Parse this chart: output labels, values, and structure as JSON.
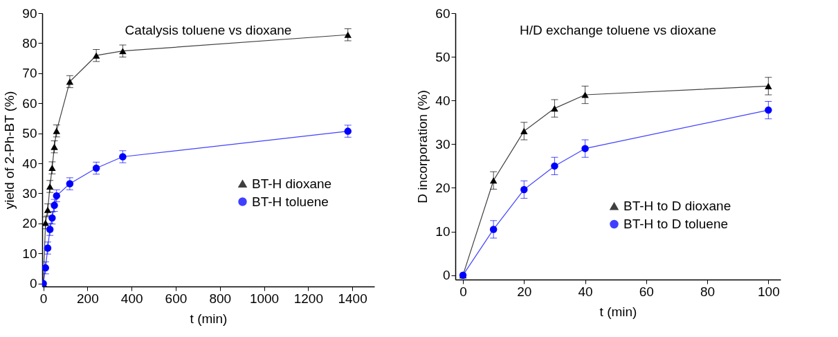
{
  "chart_data": [
    {
      "type": "line",
      "title": "Catalysis toluene vs dioxane",
      "xlabel": "t (min)",
      "ylabel": "yield of 2-Ph-BT (%)",
      "x": [
        0,
        10,
        20,
        30,
        40,
        50,
        60,
        120,
        240,
        360,
        1380
      ],
      "series": [
        {
          "name": "BT-H dioxane",
          "color": "#000000",
          "marker": "triangle",
          "values": [
            0,
            20.2,
            24.5,
            32.3,
            38.5,
            45.5,
            50.8,
            67.2,
            75.9,
            77.4,
            82.8
          ],
          "errors": [
            null,
            2,
            2,
            2,
            2,
            2,
            2,
            2,
            2,
            2,
            2
          ]
        },
        {
          "name": "BT-H toluene",
          "color": "#0000ff",
          "marker": "circle",
          "values": [
            0,
            5.2,
            11.8,
            18,
            21.8,
            26,
            29.2,
            33.2,
            38.4,
            42.2,
            50.7
          ],
          "errors": [
            null,
            2,
            2,
            2,
            2,
            2,
            2,
            2,
            2,
            2,
            2
          ]
        }
      ],
      "xlim": [
        -5,
        1500
      ],
      "ylim": [
        -1,
        90
      ],
      "xticks": [
        0,
        200,
        400,
        600,
        800,
        1000,
        1200,
        1400
      ],
      "yticks": [
        0,
        10,
        20,
        30,
        40,
        50,
        60,
        70,
        80,
        90
      ],
      "legend": "right",
      "grid": false,
      "line_style": "solid"
    },
    {
      "type": "line",
      "title": "H/D exchange toluene vs dioxane",
      "xlabel": "t (min)",
      "ylabel": "D incorporation (%)",
      "x": [
        0,
        10,
        20,
        30,
        40,
        100
      ],
      "series": [
        {
          "name": "BT-H to D dioxane",
          "color": "#000000",
          "marker": "triangle",
          "values": [
            0,
            21.7,
            33,
            38.2,
            41.3,
            43.3
          ],
          "errors": [
            null,
            2,
            2,
            2,
            2,
            2
          ]
        },
        {
          "name": "BT-H to D toluene",
          "color": "#0000ff",
          "marker": "circle",
          "values": [
            0,
            10.5,
            19.6,
            25,
            29,
            37.8
          ],
          "errors": [
            null,
            2,
            2,
            2,
            2,
            2
          ]
        }
      ],
      "xlim": [
        -2.5,
        104
      ],
      "ylim": [
        -1,
        60
      ],
      "xticks": [
        0,
        20,
        40,
        60,
        80,
        100
      ],
      "yticks": [
        0,
        10,
        20,
        30,
        40,
        50,
        60
      ],
      "legend": "bottom right",
      "grid": false,
      "line_style": "solid"
    }
  ]
}
